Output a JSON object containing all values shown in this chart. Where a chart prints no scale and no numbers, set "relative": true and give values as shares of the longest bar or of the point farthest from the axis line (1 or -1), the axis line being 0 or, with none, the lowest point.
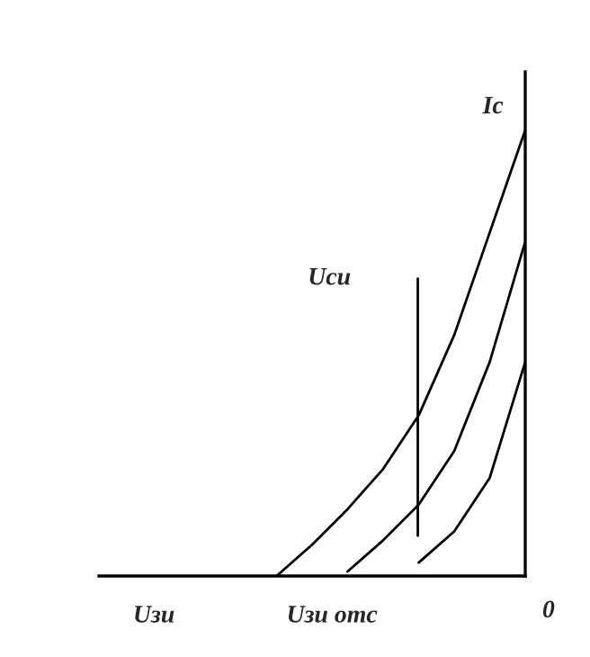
{
  "chart_data": {
    "type": "line",
    "relative": true,
    "xlabel": "Uзи",
    "ylabel": "Ic",
    "categories": [
      null,
      null,
      null,
      null,
      null,
      null,
      null,
      null,
      null,
      null,
      null,
      null,
      null
    ],
    "series": [
      {
        "color": "#000000",
        "values": [
          null,
          null,
          null,
          null,
          null,
          0,
          0.07,
          0.15,
          0.24,
          0.36,
          0.54,
          0.77,
          1
        ]
      },
      {
        "color": "#000000",
        "values": [
          null,
          null,
          null,
          null,
          null,
          null,
          null,
          0.01,
          0.08,
          0.16,
          0.28,
          0.48,
          0.75
        ]
      },
      {
        "color": "#000000",
        "values": [
          null,
          null,
          null,
          null,
          null,
          null,
          null,
          null,
          null,
          0.03,
          0.1,
          0.22,
          0.48
        ]
      }
    ],
    "annotations": [
      "Uси",
      "Uзи отс",
      "0"
    ],
    "legend": false,
    "marker": "none",
    "line_style": "solid"
  }
}
